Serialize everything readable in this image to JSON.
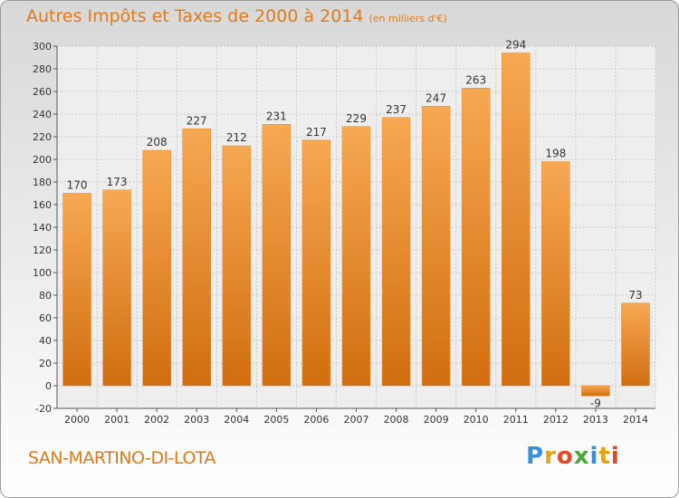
{
  "title": "Autres Impôts et Taxes de 2000 à 2014",
  "unit_label": "(en milliers d'€)",
  "commune": "SAN-MARTINO-DI-LOTA",
  "logo": {
    "text": "Proxiti",
    "letter_colors": [
      "#3b8fd9",
      "#e8a21a",
      "#e24a2a",
      "#4aa83a",
      "#3b8fd9",
      "#e8a21a",
      "#e24a2a"
    ]
  },
  "colors": {
    "bar_light": "#f7a853",
    "bar_dark": "#d06e10",
    "title": "#e07a1a"
  },
  "chart_data": {
    "type": "bar",
    "categories": [
      "2000",
      "2001",
      "2002",
      "2003",
      "2004",
      "2005",
      "2006",
      "2007",
      "2008",
      "2009",
      "2010",
      "2011",
      "2012",
      "2013",
      "2014"
    ],
    "values": [
      170,
      173,
      208,
      227,
      212,
      231,
      217,
      229,
      237,
      247,
      263,
      294,
      198,
      -9,
      73
    ],
    "ylim": [
      -20,
      300
    ],
    "yticks": [
      -20,
      0,
      20,
      40,
      60,
      80,
      100,
      120,
      140,
      160,
      180,
      200,
      220,
      240,
      260,
      280,
      300
    ],
    "grid": true
  }
}
